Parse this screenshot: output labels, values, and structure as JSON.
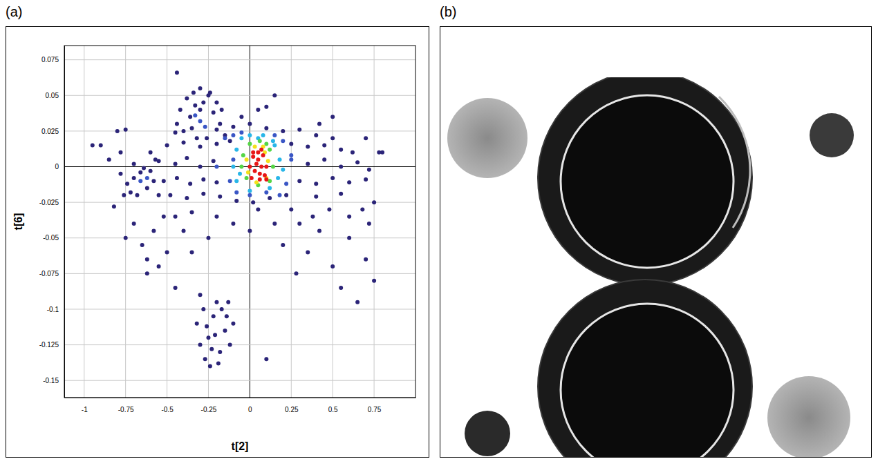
{
  "chart_data": {
    "type": "scatter",
    "panel_label": "(a)",
    "x_label": "t[2]",
    "y_label": "t[6]",
    "xlim": [
      -1.12,
      1.0
    ],
    "ylim": [
      -0.162,
      0.085
    ],
    "xticks": [
      -1,
      -0.75,
      -0.5,
      -0.25,
      0,
      0.25,
      0.5,
      0.75
    ],
    "yticks": [
      -0.15,
      -0.125,
      -0.1,
      -0.075,
      -0.05,
      -0.025,
      0,
      0.025,
      0.05,
      0.075
    ],
    "grid": true,
    "series": [
      {
        "color": "#2b2478",
        "x": [
          -0.45,
          -0.35,
          -0.2,
          -0.1,
          0.0,
          0.1,
          0.2,
          0.3,
          0.4,
          0.5,
          -0.5,
          -0.4,
          -0.3,
          -0.2,
          -0.12,
          0.25,
          0.35,
          0.45,
          0.55,
          0.62,
          -0.55,
          -0.45,
          -0.38,
          -0.3,
          -0.22,
          0.35,
          0.45,
          0.55,
          0.65,
          0.72,
          -0.52,
          -0.44,
          -0.36,
          -0.28,
          -0.2,
          0.3,
          0.4,
          0.5,
          0.6,
          0.7,
          -0.48,
          -0.38,
          -0.28,
          -0.18,
          -0.08,
          0.02,
          0.12,
          0.22,
          0.4,
          0.55,
          -0.42,
          -0.38,
          -0.34,
          -0.3,
          -0.25,
          -0.2,
          -0.17,
          -0.36,
          -0.28,
          -0.22,
          -0.44,
          -0.4,
          -0.32,
          -0.26,
          -0.18,
          -0.15,
          -0.3,
          -0.24,
          -0.33,
          -0.44,
          -0.78,
          -0.74,
          -0.7,
          -0.66,
          -0.62,
          -0.58,
          -0.72,
          -0.68,
          -0.6,
          -0.55,
          -0.76,
          -0.64,
          -0.7,
          -0.9,
          -0.85,
          -0.8,
          -0.78,
          -0.6,
          -0.57,
          -0.82,
          -0.75,
          -0.7,
          -0.65,
          -0.62,
          -0.58,
          -0.55,
          -0.5,
          -0.45,
          -0.52,
          -0.62,
          -0.4,
          -0.35,
          -0.3,
          -0.25,
          -0.45,
          -0.35,
          -0.2,
          -0.1,
          0.0,
          0.05,
          0.15,
          0.2,
          0.28,
          0.35,
          0.42,
          0.5,
          0.55,
          0.6,
          0.65,
          0.7,
          0.75,
          0.72,
          0.68,
          0.6,
          0.48,
          0.38,
          0.3,
          0.75,
          0.78,
          0.25,
          -0.32,
          -0.28,
          -0.25,
          -0.22,
          -0.18,
          -0.15,
          -0.12,
          -0.27,
          -0.2,
          -0.24,
          -0.3,
          -0.21,
          -0.17,
          -0.26,
          -0.14,
          -0.19,
          -0.23,
          -0.1,
          0.1,
          -0.13,
          0.05,
          0.15,
          0.5,
          0.7,
          0.8,
          -0.95,
          -0.75,
          0.1,
          -0.05,
          0.42
        ],
        "values": [
          0.024,
          0.027,
          0.026,
          0.028,
          0.03,
          0.027,
          0.025,
          0.026,
          0.022,
          0.02,
          0.015,
          0.017,
          0.014,
          0.016,
          0.018,
          0.016,
          0.014,
          0.015,
          0.012,
          0.01,
          0.004,
          0.002,
          0.006,
          0.0,
          0.004,
          0.002,
          0.005,
          0.0,
          0.003,
          -0.002,
          -0.01,
          -0.008,
          -0.012,
          -0.009,
          -0.011,
          -0.01,
          -0.012,
          -0.008,
          -0.011,
          -0.009,
          -0.02,
          -0.022,
          -0.019,
          -0.021,
          -0.024,
          -0.025,
          -0.022,
          -0.02,
          -0.021,
          -0.019,
          0.04,
          0.048,
          0.052,
          0.055,
          0.05,
          0.045,
          0.04,
          0.035,
          0.045,
          0.038,
          0.03,
          0.025,
          0.02,
          0.02,
          0.03,
          0.022,
          0.04,
          0.052,
          0.043,
          0.066,
          -0.005,
          -0.012,
          -0.008,
          -0.004,
          -0.015,
          -0.01,
          -0.018,
          -0.02,
          -0.003,
          -0.02,
          -0.02,
          -0.001,
          0.002,
          0.015,
          0.005,
          0.025,
          0.01,
          0.01,
          0.005,
          -0.028,
          -0.05,
          -0.04,
          -0.055,
          -0.065,
          -0.045,
          -0.07,
          -0.06,
          -0.085,
          -0.035,
          -0.075,
          -0.045,
          -0.06,
          -0.09,
          -0.05,
          -0.035,
          -0.032,
          -0.035,
          -0.04,
          -0.045,
          -0.03,
          -0.04,
          -0.055,
          -0.075,
          -0.06,
          -0.045,
          -0.07,
          -0.085,
          -0.05,
          -0.095,
          -0.065,
          -0.08,
          -0.04,
          -0.03,
          -0.035,
          -0.03,
          -0.035,
          -0.04,
          -0.025,
          0.01,
          -0.03,
          -0.11,
          -0.1,
          -0.12,
          -0.105,
          -0.13,
          -0.115,
          -0.125,
          -0.135,
          -0.095,
          -0.14,
          -0.125,
          -0.118,
          -0.1,
          -0.112,
          -0.105,
          -0.138,
          -0.128,
          -0.11,
          -0.135,
          -0.095,
          0.04,
          0.05,
          0.035,
          0.02,
          0.01,
          0.015,
          0.026,
          0.042,
          0.035,
          0.03
        ]
      },
      {
        "color": "#3a56c5",
        "x": [
          -0.15,
          -0.1,
          -0.05,
          0.15,
          0.2,
          0.25,
          -0.12,
          0.22,
          -0.08,
          0.18,
          -0.3,
          -0.27,
          -0.33,
          -0.66,
          -0.62,
          -0.1,
          0.25,
          0.0,
          0.1,
          -0.2
        ],
        "values": [
          0.02,
          0.022,
          0.024,
          0.022,
          0.018,
          0.005,
          -0.01,
          -0.012,
          -0.018,
          -0.02,
          0.032,
          0.028,
          0.036,
          -0.01,
          -0.008,
          0.005,
          0.008,
          -0.02,
          -0.018,
          0.0
        ]
      },
      {
        "color": "#29b6e8",
        "x": [
          -0.08,
          -0.05,
          0.0,
          0.08,
          0.15,
          0.18,
          0.17,
          0.12,
          0.0,
          -0.08,
          -0.1,
          0.05,
          0.2,
          -0.06,
          0.14
        ],
        "values": [
          0.012,
          0.02,
          0.022,
          0.022,
          0.015,
          0.005,
          -0.008,
          -0.015,
          -0.017,
          -0.01,
          0.0,
          0.02,
          -0.002,
          -0.005,
          0.018
        ]
      },
      {
        "color": "#55d646",
        "x": [
          -0.04,
          0.0,
          0.06,
          0.12,
          0.14,
          0.12,
          0.05,
          -0.02,
          -0.05,
          0.1
        ],
        "values": [
          0.008,
          0.016,
          0.018,
          0.012,
          0.0,
          -0.01,
          -0.013,
          -0.008,
          0.0,
          0.016
        ]
      },
      {
        "color": "#f4e11c",
        "x": [
          -0.02,
          0.03,
          0.08,
          0.11,
          0.1,
          0.04,
          -0.01,
          0.09
        ],
        "values": [
          0.005,
          0.014,
          0.014,
          0.004,
          -0.008,
          -0.011,
          -0.004,
          0.01
        ]
      },
      {
        "color": "#e81717",
        "x": [
          0.02,
          0.05,
          0.08,
          0.0,
          0.04,
          0.07,
          0.06,
          0.09,
          0.03,
          0.05,
          0.01,
          0.1,
          0.07,
          0.02,
          0.1,
          0.06
        ],
        "values": [
          0.01,
          0.01,
          0.008,
          0.0,
          0.002,
          0.0,
          -0.005,
          -0.006,
          -0.003,
          0.005,
          -0.008,
          0.0,
          0.012,
          0.007,
          -0.009,
          -0.009
        ]
      }
    ]
  },
  "image_panel": {
    "panel_label": "(b)"
  }
}
